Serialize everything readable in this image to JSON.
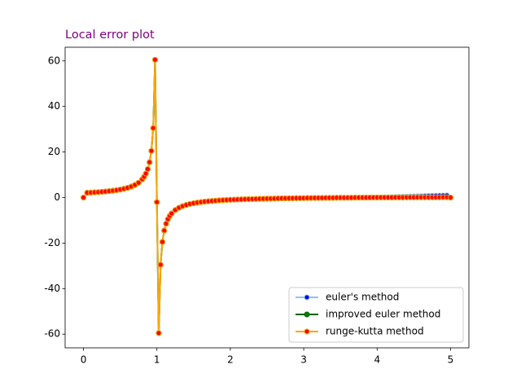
{
  "chart_data": {
    "type": "line",
    "title": "Local error plot",
    "title_color": "#800080",
    "x": [
      0,
      0.05,
      0.1,
      0.15,
      0.2,
      0.25,
      0.3,
      0.35,
      0.4,
      0.45,
      0.5,
      0.55,
      0.6,
      0.65,
      0.7,
      0.75,
      0.8,
      0.825,
      0.85,
      0.875,
      0.9,
      0.925,
      0.95,
      0.975,
      1.0,
      1.025,
      1.05,
      1.075,
      1.1,
      1.125,
      1.15,
      1.175,
      1.2,
      1.25,
      1.3,
      1.35,
      1.4,
      1.45,
      1.5,
      1.55,
      1.6,
      1.65,
      1.7,
      1.75,
      1.8,
      1.85,
      1.9,
      1.95,
      2.0,
      2.05,
      2.1,
      2.15,
      2.2,
      2.25,
      2.3,
      2.35,
      2.4,
      2.45,
      2.5,
      2.55,
      2.6,
      2.65,
      2.7,
      2.75,
      2.8,
      2.85,
      2.9,
      2.95,
      3.0,
      3.05,
      3.1,
      3.15,
      3.2,
      3.25,
      3.3,
      3.35,
      3.4,
      3.45,
      3.5,
      3.55,
      3.6,
      3.65,
      3.7,
      3.75,
      3.8,
      3.85,
      3.9,
      3.95,
      4.0,
      4.05,
      4.1,
      4.15,
      4.2,
      4.25,
      4.3,
      4.35,
      4.4,
      4.45,
      4.5,
      4.55,
      4.6,
      4.65,
      4.7,
      4.75,
      4.8,
      4.85,
      4.9,
      4.95,
      5.0
    ],
    "series": [
      {
        "name": "euler's method",
        "color": "#8fc3ea",
        "marker_color": "#0000ff",
        "marker_edge": "#8fc3ea",
        "values": [
          0,
          2.08,
          2.17,
          2.26,
          2.38,
          2.5,
          2.64,
          2.81,
          3,
          3.23,
          3.5,
          3.83,
          4.25,
          4.79,
          5.5,
          6.5,
          8,
          9.07,
          10.5,
          12.5,
          15.5,
          20.5,
          30.5,
          60.5,
          -2,
          -59.5,
          -29.5,
          -19.5,
          -14.5,
          -11.5,
          -9.5,
          -8.07,
          -7,
          -5.5,
          -4.5,
          -3.79,
          -3.25,
          -2.83,
          -2.5,
          -2.23,
          -2,
          -1.81,
          -1.64,
          -1.5,
          -1.38,
          -1.26,
          -1.17,
          -1.08,
          -1,
          -0.93,
          -0.86,
          -0.8,
          -0.75,
          -0.7,
          -0.65,
          -0.61,
          -0.57,
          -0.53,
          -0.5,
          -0.47,
          -0.44,
          -0.41,
          -0.38,
          -0.36,
          -0.33,
          -0.31,
          -0.29,
          -0.27,
          -0.25,
          -0.23,
          -0.21,
          -0.2,
          -0.18,
          -0.17,
          -0.15,
          -0.14,
          -0.13,
          -0.11,
          -0.1,
          -0.09,
          -0.08,
          -0.07,
          -0.06,
          -0.05,
          -0.04,
          -0.03,
          -0.02,
          -0.01,
          0,
          0.05,
          0.1,
          0.15,
          0.2,
          0.25,
          0.3,
          0.35,
          0.4,
          0.45,
          0.5,
          0.55,
          0.6,
          0.65,
          0.7,
          0.75,
          0.8,
          0.85,
          0.9,
          0.95,
          0
        ]
      },
      {
        "name": "improved euler method",
        "color": "#006400",
        "marker_color": "#008000",
        "marker_edge": "#006400",
        "values": [
          0,
          2.08,
          2.17,
          2.26,
          2.38,
          2.5,
          2.64,
          2.81,
          3,
          3.23,
          3.5,
          3.83,
          4.25,
          4.79,
          5.5,
          6.5,
          8,
          9.07,
          10.5,
          12.5,
          15.5,
          20.5,
          30.5,
          60.5,
          -2,
          -59.5,
          -29.5,
          -19.5,
          -14.5,
          -11.5,
          -9.5,
          -8.07,
          -7,
          -5.5,
          -4.5,
          -3.79,
          -3.25,
          -2.83,
          -2.5,
          -2.23,
          -2,
          -1.81,
          -1.64,
          -1.5,
          -1.38,
          -1.26,
          -1.17,
          -1.08,
          -1,
          -0.93,
          -0.86,
          -0.8,
          -0.75,
          -0.7,
          -0.65,
          -0.61,
          -0.57,
          -0.53,
          -0.5,
          -0.47,
          -0.44,
          -0.41,
          -0.38,
          -0.36,
          -0.33,
          -0.31,
          -0.29,
          -0.27,
          -0.25,
          -0.23,
          -0.21,
          -0.2,
          -0.18,
          -0.17,
          -0.15,
          -0.14,
          -0.13,
          -0.11,
          -0.1,
          -0.09,
          -0.08,
          -0.07,
          -0.06,
          -0.05,
          -0.04,
          -0.03,
          -0.02,
          -0.01,
          0,
          0.01,
          0.02,
          0.02,
          0.03,
          0.04,
          0.05,
          0.05,
          0.06,
          0.07,
          0.07,
          0.08,
          0.08,
          0.09,
          0.09,
          0.1,
          0.11,
          0.11,
          0.12,
          0.12,
          0
        ]
      },
      {
        "name": "runge-kutta method",
        "color": "#ffa500",
        "marker_color": "#ff0000",
        "marker_edge": "#ffa500",
        "values": [
          0,
          2.08,
          2.17,
          2.26,
          2.38,
          2.5,
          2.64,
          2.81,
          3,
          3.23,
          3.5,
          3.83,
          4.25,
          4.79,
          5.5,
          6.5,
          8,
          9.07,
          10.5,
          12.5,
          15.5,
          20.5,
          30.5,
          60.5,
          -2,
          -59.5,
          -29.5,
          -19.5,
          -14.5,
          -11.5,
          -9.5,
          -8.07,
          -7,
          -5.5,
          -4.5,
          -3.79,
          -3.25,
          -2.83,
          -2.5,
          -2.23,
          -2,
          -1.81,
          -1.64,
          -1.5,
          -1.38,
          -1.26,
          -1.17,
          -1.08,
          -1,
          -0.93,
          -0.86,
          -0.8,
          -0.75,
          -0.7,
          -0.65,
          -0.61,
          -0.57,
          -0.53,
          -0.5,
          -0.47,
          -0.44,
          -0.41,
          -0.38,
          -0.36,
          -0.33,
          -0.31,
          -0.29,
          -0.27,
          -0.25,
          -0.23,
          -0.21,
          -0.2,
          -0.18,
          -0.17,
          -0.15,
          -0.14,
          -0.13,
          -0.11,
          -0.1,
          -0.09,
          -0.08,
          -0.07,
          -0.06,
          -0.05,
          -0.04,
          -0.03,
          -0.02,
          -0.01,
          0,
          0.01,
          0.02,
          0.02,
          0.03,
          0.04,
          0.05,
          0.05,
          0.06,
          0.07,
          0.07,
          0.08,
          0.08,
          0.09,
          0.09,
          0.1,
          0.11,
          0.11,
          0.12,
          0.12,
          0
        ]
      }
    ],
    "xlim": [
      -0.25,
      5.25
    ],
    "ylim": [
      -66,
      66
    ],
    "xticks": [
      0,
      1,
      2,
      3,
      4,
      5
    ],
    "yticks": [
      -60,
      -40,
      -20,
      0,
      20,
      40,
      60
    ],
    "grid": false,
    "legend": "lower right"
  }
}
